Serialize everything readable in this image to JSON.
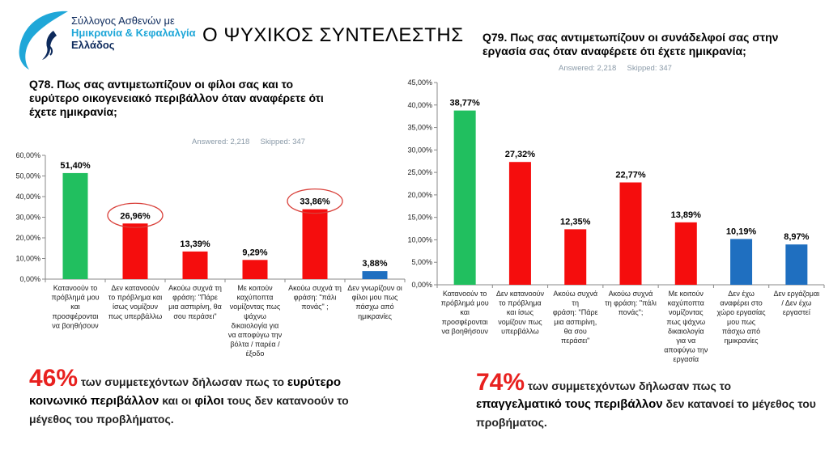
{
  "logo": {
    "line1": "Σύλλογος Ασθενών με",
    "line2": "Ημικρανία & Κεφαλαλγία",
    "line3": "Ελλάδος"
  },
  "page_title": "Ο ΨΥΧΙΚΟΣ ΣΥΝΤΕΛΕΣΤΗΣ",
  "q78": {
    "title": "Q78. Πως σας αντιμετωπίζουν οι φίλοι σας και το ευρύτερο οικογενειακό περιβάλλον  όταν αναφέρετε ότι έχετε ημικρανία;",
    "answered": "Answered: 2,218",
    "skipped": "Skipped: 347",
    "summary": {
      "pct": "46%",
      "t1": " των συμμετεχόντων δήλωσαν πως το ",
      "hl1": "ευρύτερο κοινωνικό περιβάλλον",
      "t2": " και οι ",
      "hl2": "φίλοι",
      "t3": " τους δεν κατανοούν το μέγεθος του προβλήματος."
    }
  },
  "q79": {
    "title": "Q79.  Πως σας αντιμετωπίζουν οι συνάδελφοί σας στην εργασία σας όταν αναφέρετε ότι έχετε ημικρανία;",
    "answered": "Answered: 2,218",
    "skipped": "Skipped: 347",
    "summary": {
      "pct": "74%",
      "t1": " των συμμετεχόντων δήλωσαν πως το ",
      "hl1": "επαγγελματικό τους περιβάλλον",
      "t2": " δεν κατανοεί το μέγεθος του προβήματος."
    }
  },
  "colors": {
    "green": "#21bf5f",
    "red": "#f50d0d",
    "blue": "#1f6fc0",
    "circle": "#d9403a"
  },
  "chart_data": [
    {
      "type": "bar",
      "categories": [
        "Κατανοούν το πρόβλημά μου και προσφέρονται να βοηθήσουν",
        "Δεν κατανοούν το πρόβλημα και ίσως νομίζουν πως υπερβάλλω",
        "Ακούω συχνά τη φράση: \"Πάρε μια ασπιρίνη, θα σου περάσει\"",
        "Με κοιτούν καχύποπτα νομίζοντας πως ψάχνω δικαιολογία για να αποφύγω την βόλτα / παρέα / έξοδο",
        "Ακούω συχνά τη φράση: \"πάλι πονάς\" ;",
        "Δεν γνωρίζουν οι φίλοι μου πως πάσχω από ημικρανίες"
      ],
      "category_lines": [
        [
          "Κατανοούν το",
          "πρόβλημά μου",
          "και",
          "προσφέρονται",
          "να βοηθήσουν"
        ],
        [
          "Δεν κατανοούν",
          "το πρόβλημα και",
          "ίσως νομίζουν",
          "πως υπερβάλλω"
        ],
        [
          "Ακούω συχνά τη",
          "φράση: \"Πάρε",
          "μια ασπιρίνη, θα",
          "σου περάσει\""
        ],
        [
          "Με κοιτούν",
          "καχύποπτα",
          "νομίζοντας πως",
          "ψάχνω",
          "δικαιολογία για",
          "να αποφύγω την",
          "βόλτα / παρέα /",
          "έξοδο"
        ],
        [
          "Ακούω συχνά τη",
          "φράση: \"πάλι",
          "πονάς\" ;"
        ],
        [
          "Δεν γνωρίζουν οι",
          "φίλοι μου πως",
          "πάσχω από",
          "ημικρανίες"
        ]
      ],
      "values": [
        51.4,
        26.96,
        13.39,
        9.29,
        33.86,
        3.88
      ],
      "labels": [
        "51,40%",
        "26,96%",
        "13,39%",
        "9,29%",
        "33,86%",
        "3,88%"
      ],
      "bar_colors": [
        "#21bf5f",
        "#f50d0d",
        "#f50d0d",
        "#f50d0d",
        "#f50d0d",
        "#1f6fc0"
      ],
      "highlighted": [
        1,
        4
      ],
      "ylim": [
        0,
        60
      ],
      "ytick_step": 10,
      "yticks": [
        "0,00%",
        "10,00%",
        "20,00%",
        "30,00%",
        "40,00%",
        "50,00%",
        "60,00%"
      ]
    },
    {
      "type": "bar",
      "categories": [
        "Κατανοούν το πρόβλημά μου και προσφέρονται να βοηθήσουν",
        "Δεν κατανοούν το πρόβλημα και ίσως νομίζουν πως υπερβάλλω",
        "Ακούω συχνά τη φράση: \"Πάρε μια ασπιρίνη, θα σου περάσει\"",
        "Ακούω συχνά τη φράση: \"πάλι πονάς\";",
        "Με κοιτούν καχύποπτα νομίζοντας πως ψάχνω δικαιολογία για να αποφύγω την εργασία",
        "Δεν έχω αναφέρει στο χώρο εργασίας μου πως πάσχω από ημικρανίες",
        "Δεν εργάζομαι / Δεν έχω εργαστεί"
      ],
      "category_lines": [
        [
          "Κατανοούν το",
          "πρόβλημά μου",
          "και",
          "προσφέρονται",
          "να βοηθήσουν"
        ],
        [
          "Δεν κατανοούν",
          "το πρόβλημα",
          "και ίσως",
          "νομίζουν πως",
          "υπερβάλλω"
        ],
        [
          "Ακούω συχνά",
          "τη",
          "φράση: \"Πάρε",
          "μια ασπιρίνη,",
          "θα σου",
          "περάσει\""
        ],
        [
          "Ακούω συχνά",
          "τη φράση: \"πάλι",
          "πονάς\";"
        ],
        [
          "Με κοιτούν",
          "καχύποπτα",
          "νομίζοντας",
          "πως ψάχνω",
          "δικαιολογία",
          "για να",
          "αποφύγω την",
          "εργασία"
        ],
        [
          "Δεν έχω",
          "αναφέρει στο",
          "χώρο εργασίας",
          "μου πως",
          "πάσχω από",
          "ημικρανίες"
        ],
        [
          "Δεν εργάζομαι",
          "/ Δεν έχω",
          "εργαστεί"
        ]
      ],
      "values": [
        38.77,
        27.32,
        12.35,
        22.77,
        13.89,
        10.19,
        8.97
      ],
      "labels": [
        "38,77%",
        "27,32%",
        "12,35%",
        "22,77%",
        "13,89%",
        "10,19%",
        "8,97%"
      ],
      "bar_colors": [
        "#21bf5f",
        "#f50d0d",
        "#f50d0d",
        "#f50d0d",
        "#f50d0d",
        "#1f6fc0",
        "#1f6fc0"
      ],
      "highlighted": [],
      "ylim": [
        0,
        45
      ],
      "ytick_step": 5,
      "yticks": [
        "0,00%",
        "5,00%",
        "10,00%",
        "15,00%",
        "20,00%",
        "25,00%",
        "30,00%",
        "35,00%",
        "40,00%",
        "45,00%"
      ]
    }
  ]
}
